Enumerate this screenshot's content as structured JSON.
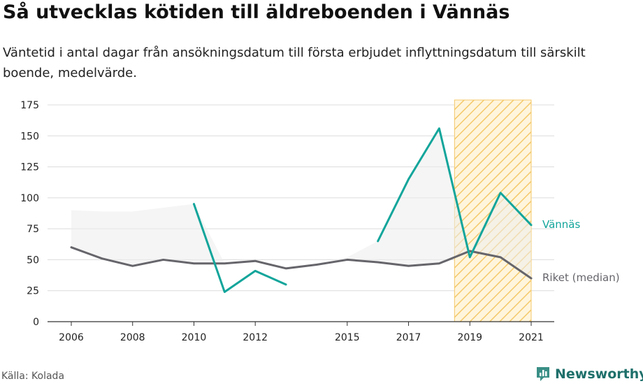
{
  "title": "Så utvecklas kötiden till äldreboenden i Vännäs",
  "subtitle": "Väntetid i antal dagar från ansökningsdatum till första erbjudet inflyttningsdatum till särskilt boende, medelvärde.",
  "source": "Källa: Kolada",
  "brand": "Newsworthy",
  "colors": {
    "vannas": "#13a59b",
    "riket": "#66656b",
    "highlight": "#f4c96a",
    "band": "#ececec",
    "grid": "#dcdcdc"
  },
  "chart_data": {
    "type": "line",
    "x_ticks": [
      "2006",
      "2008",
      "2010",
      "2012",
      "2015",
      "2017",
      "2019",
      "2021"
    ],
    "y_ticks": [
      "0",
      "25",
      "50",
      "75",
      "100",
      "125",
      "150",
      "175"
    ],
    "xlim": [
      2006,
      2021
    ],
    "ylim": [
      0,
      180
    ],
    "highlight_range": [
      2018.5,
      2021
    ],
    "series": [
      {
        "name": "Vännäs",
        "x": [
          2006,
          2007,
          2008,
          2009,
          2010,
          2011,
          2012,
          2013,
          2014,
          2015,
          2016,
          2017,
          2018,
          2019,
          2020,
          2021
        ],
        "y": [
          null,
          null,
          null,
          null,
          95,
          24,
          41,
          30,
          null,
          null,
          65,
          115,
          156,
          52,
          104,
          78
        ]
      },
      {
        "name": "Riket (median)",
        "x": [
          2006,
          2007,
          2008,
          2009,
          2010,
          2011,
          2012,
          2013,
          2014,
          2015,
          2016,
          2017,
          2018,
          2019,
          2020,
          2021
        ],
        "y": [
          60,
          51,
          45,
          50,
          47,
          47,
          49,
          43,
          46,
          50,
          48,
          45,
          47,
          57,
          52,
          35
        ]
      },
      {
        "name": "",
        "role": "range band upper",
        "x": [
          2006,
          2007,
          2008,
          2009,
          2010,
          2011,
          2012,
          2013,
          2014,
          2015,
          2016,
          2017,
          2018,
          2019,
          2020,
          2021
        ],
        "y": [
          90,
          89,
          89,
          92,
          95,
          47,
          49,
          43,
          46,
          52,
          65,
          115,
          156,
          57,
          104,
          78
        ]
      }
    ]
  }
}
